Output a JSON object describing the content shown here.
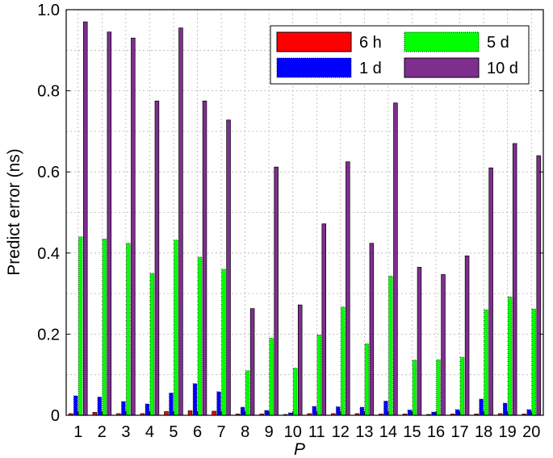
{
  "chart_data": {
    "type": "bar",
    "title": "",
    "xlabel": "P",
    "ylabel": "Predict error (ns)",
    "ylim": [
      0,
      1.0
    ],
    "yticks": [
      "0",
      "0.2",
      "0.4",
      "0.6",
      "0.8",
      "1.0"
    ],
    "categories": [
      "1",
      "2",
      "3",
      "4",
      "5",
      "6",
      "7",
      "8",
      "9",
      "10",
      "11",
      "12",
      "13",
      "14",
      "15",
      "16",
      "17",
      "18",
      "19",
      "20"
    ],
    "grid": true,
    "legend_position": "top-right",
    "series": [
      {
        "name": "6 h",
        "color": "#ff0000",
        "values": [
          0.004,
          0.007,
          0.004,
          0.004,
          0.009,
          0.011,
          0.01,
          0.003,
          0.003,
          0.002,
          0.004,
          0.004,
          0.004,
          0.003,
          0.003,
          0.002,
          0.003,
          0.003,
          0.004,
          0.003
        ]
      },
      {
        "name": "1 d",
        "color": "#0000ff",
        "values": [
          0.048,
          0.045,
          0.034,
          0.028,
          0.055,
          0.078,
          0.058,
          0.02,
          0.012,
          0.006,
          0.022,
          0.021,
          0.02,
          0.035,
          0.013,
          0.008,
          0.014,
          0.04,
          0.03,
          0.014
        ]
      },
      {
        "name": "5 d",
        "color": "#00ff00",
        "values": [
          0.44,
          0.435,
          0.424,
          0.35,
          0.432,
          0.39,
          0.36,
          0.11,
          0.19,
          0.116,
          0.198,
          0.267,
          0.176,
          0.343,
          0.136,
          0.137,
          0.143,
          0.26,
          0.292,
          0.262
        ]
      },
      {
        "name": "10 d",
        "color": "#7e2f8e",
        "values": [
          0.97,
          0.945,
          0.93,
          0.775,
          0.955,
          0.775,
          0.728,
          0.263,
          0.612,
          0.272,
          0.472,
          0.625,
          0.424,
          0.77,
          0.365,
          0.347,
          0.393,
          0.61,
          0.67,
          0.64
        ]
      }
    ]
  }
}
